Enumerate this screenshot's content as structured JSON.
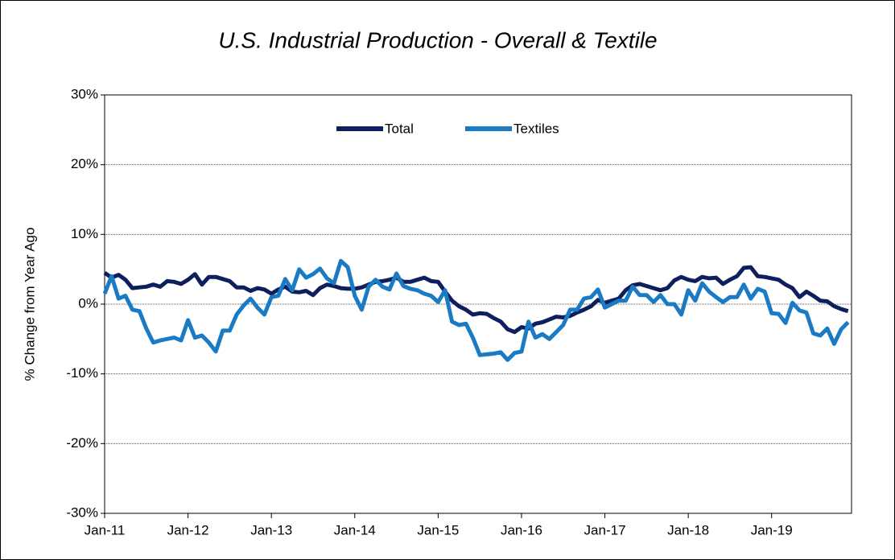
{
  "chart_data": {
    "type": "line",
    "title": "U.S. Industrial Production - Overall & Textile",
    "y_label": "% Change from Year Ago",
    "categories": [
      "Jan-11",
      null,
      null,
      null,
      null,
      null,
      null,
      null,
      null,
      null,
      null,
      null,
      "Jan-12",
      null,
      null,
      null,
      null,
      null,
      null,
      null,
      null,
      null,
      null,
      null,
      "Jan-13",
      null,
      null,
      null,
      null,
      null,
      null,
      null,
      null,
      null,
      null,
      null,
      "Jan-14",
      null,
      null,
      null,
      null,
      null,
      null,
      null,
      null,
      null,
      null,
      null,
      "Jan-15",
      null,
      null,
      null,
      null,
      null,
      null,
      null,
      null,
      null,
      null,
      null,
      "Jan-16",
      null,
      null,
      null,
      null,
      null,
      null,
      null,
      null,
      null,
      null,
      null,
      "Jan-17",
      null,
      null,
      null,
      null,
      null,
      null,
      null,
      null,
      null,
      null,
      null,
      "Jan-18",
      null,
      null,
      null,
      null,
      null,
      null,
      null,
      null,
      null,
      null,
      null,
      "Jan-19",
      null,
      null,
      null,
      null,
      null,
      null,
      null,
      null,
      null,
      null,
      null
    ],
    "series": [
      {
        "name": "Total",
        "color": "#0d1f5c",
        "values": [
          4.5,
          3.8,
          4.2,
          3.5,
          2.3,
          2.4,
          2.5,
          2.8,
          2.5,
          3.3,
          3.2,
          2.9,
          3.5,
          4.3,
          2.8,
          3.9,
          3.9,
          3.6,
          3.3,
          2.4,
          2.4,
          1.9,
          2.3,
          2.1,
          1.5,
          2.1,
          2.5,
          1.8,
          1.7,
          1.9,
          1.3,
          2.3,
          2.8,
          2.6,
          2.3,
          2.2,
          2.2,
          2.4,
          2.8,
          3.2,
          3.3,
          3.5,
          3.8,
          3.2,
          3.2,
          3.5,
          3.8,
          3.3,
          3.2,
          1.8,
          0.5,
          -0.3,
          -0.8,
          -1.5,
          -1.3,
          -1.4,
          -2.0,
          -2.5,
          -3.6,
          -4.0,
          -3.3,
          -3.5,
          -2.8,
          -2.6,
          -2.2,
          -1.8,
          -1.9,
          -1.7,
          -1.2,
          -0.8,
          -0.3,
          0.6,
          0.2,
          0.5,
          0.8,
          2.0,
          2.7,
          2.9,
          2.6,
          2.3,
          2.0,
          2.3,
          3.4,
          3.9,
          3.5,
          3.3,
          3.9,
          3.7,
          3.8,
          2.9,
          3.5,
          4.0,
          5.2,
          5.3,
          4.0,
          3.9,
          3.7,
          3.5,
          2.8,
          2.3,
          1.0,
          1.8,
          1.2,
          0.5,
          0.4,
          -0.3,
          -0.7,
          -1.0
        ]
      },
      {
        "name": "Textiles",
        "color": "#1a7bc4",
        "values": [
          1.5,
          4.0,
          0.8,
          1.2,
          -0.8,
          -1.0,
          -3.5,
          -5.5,
          -5.2,
          -5.0,
          -4.8,
          -5.2,
          -2.3,
          -4.8,
          -4.5,
          -5.5,
          -6.8,
          -3.8,
          -3.8,
          -1.5,
          -0.2,
          0.8,
          -0.5,
          -1.5,
          1.0,
          1.2,
          3.6,
          2.0,
          5.0,
          3.8,
          4.3,
          5.1,
          3.7,
          3.0,
          6.2,
          5.3,
          1.2,
          -0.8,
          2.5,
          3.5,
          2.5,
          2.1,
          4.4,
          2.6,
          2.2,
          2.0,
          1.5,
          1.2,
          0.3,
          2.0,
          -2.5,
          -3.0,
          -2.8,
          -4.8,
          -7.3,
          -7.2,
          -7.1,
          -6.9,
          -8.0,
          -7.0,
          -6.8,
          -2.5,
          -4.8,
          -4.3,
          -5.0,
          -4.0,
          -3.0,
          -0.8,
          -0.8,
          0.8,
          1.0,
          2.1,
          -0.5,
          0.0,
          0.5,
          0.5,
          2.5,
          1.3,
          1.3,
          0.3,
          1.3,
          0.0,
          0.0,
          -1.5,
          2.0,
          0.5,
          3.0,
          1.8,
          1.0,
          0.3,
          1.0,
          1.0,
          2.8,
          0.8,
          2.2,
          1.8,
          -1.3,
          -1.4,
          -2.7,
          0.2,
          -0.9,
          -1.2,
          -4.2,
          -4.5,
          -3.5,
          -5.7,
          -3.6,
          -2.6
        ]
      }
    ],
    "ylim": [
      -30,
      30
    ],
    "yticks": [
      {
        "value": -30,
        "label": "-30%"
      },
      {
        "value": -20,
        "label": "-20%"
      },
      {
        "value": -10,
        "label": "-10%"
      },
      {
        "value": 0,
        "label": "0%"
      },
      {
        "value": 10,
        "label": "10%"
      },
      {
        "value": 20,
        "label": "20%"
      },
      {
        "value": 30,
        "label": "30%"
      }
    ],
    "grid": true,
    "legend": "top"
  }
}
